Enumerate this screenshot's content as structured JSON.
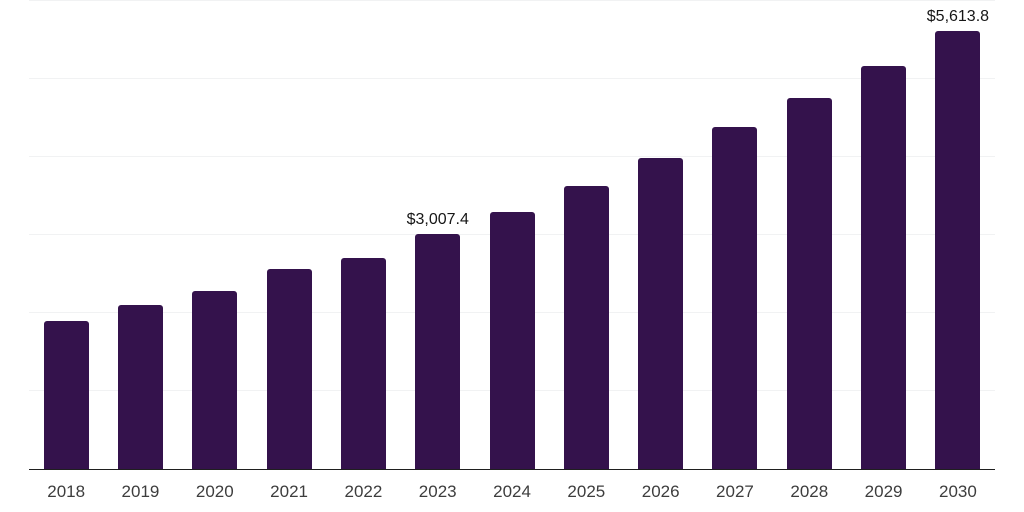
{
  "chart_data": {
    "type": "bar",
    "title": "",
    "xlabel": "",
    "ylabel": "",
    "categories": [
      "2018",
      "2019",
      "2020",
      "2021",
      "2022",
      "2023",
      "2024",
      "2025",
      "2026",
      "2027",
      "2028",
      "2029",
      "2030"
    ],
    "values": [
      1900,
      2100,
      2285,
      2565,
      2705,
      3007.4,
      3295,
      3625,
      3985,
      4380,
      4750,
      5160,
      5613.8
    ],
    "data_labels": [
      "",
      "",
      "",
      "",
      "",
      "$3,007.4",
      "",
      "",
      "",
      "",
      "",
      "",
      "$5,613.8"
    ],
    "ylim": [
      0,
      6000
    ],
    "grid": true,
    "grid_step": 1000,
    "legend": "none",
    "bar_color": "#34124c",
    "grid_color": "#f1f2f3",
    "axis_color": "#1f1f1f",
    "tick_label_color": "#3d3d3d",
    "data_label_color": "#161616"
  }
}
